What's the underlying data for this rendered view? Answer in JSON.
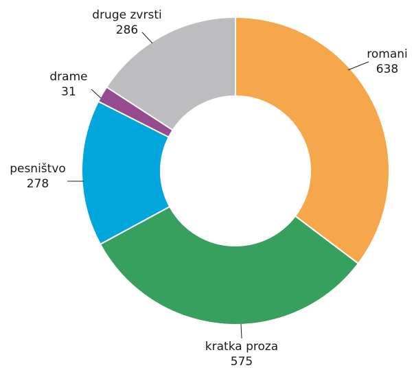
{
  "chart_data": {
    "type": "pie",
    "title": "",
    "categories": [
      "romani",
      "kratka proza",
      "pesništvo",
      "drame",
      "druge zvrsti"
    ],
    "values": [
      638,
      575,
      278,
      31,
      286
    ],
    "colors": [
      "#f7a74b",
      "#38a05e",
      "#00a6dc",
      "#964b8e",
      "#bdbdbf"
    ],
    "donut": true,
    "start_angle_deg": 0,
    "direction": "clockwise",
    "legend": "none",
    "data_labels": "outside-with-leaders"
  }
}
